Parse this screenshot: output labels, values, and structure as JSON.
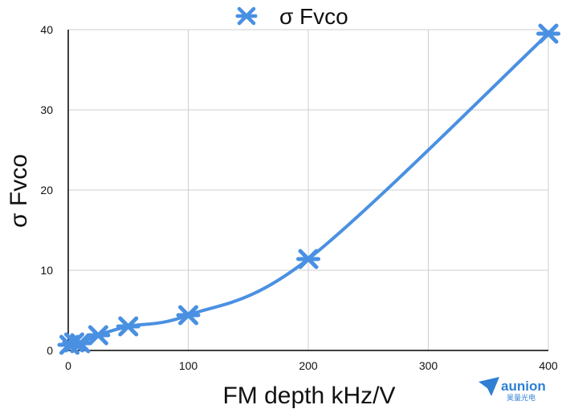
{
  "chart_data": {
    "type": "scatter",
    "title": "",
    "xlabel": "FM depth kHz/V",
    "ylabel": "σ Fvco",
    "xlim": [
      0,
      400
    ],
    "ylim": [
      0,
      40
    ],
    "x_ticks": [
      0,
      100,
      200,
      300,
      400
    ],
    "y_ticks": [
      0,
      10,
      20,
      30,
      40
    ],
    "grid": true,
    "legend": "top",
    "line": "smooth",
    "series": [
      {
        "name": "σ Fvco",
        "color": "#4a90e2",
        "marker": "asterisk",
        "x": [
          1,
          5,
          10,
          25,
          50,
          100,
          200,
          400
        ],
        "y": [
          0.7,
          1.0,
          0.9,
          1.9,
          3.0,
          4.4,
          11.4,
          39.5
        ]
      }
    ]
  },
  "watermark": {
    "brand": "aunion",
    "subtext": "昊量光电"
  }
}
